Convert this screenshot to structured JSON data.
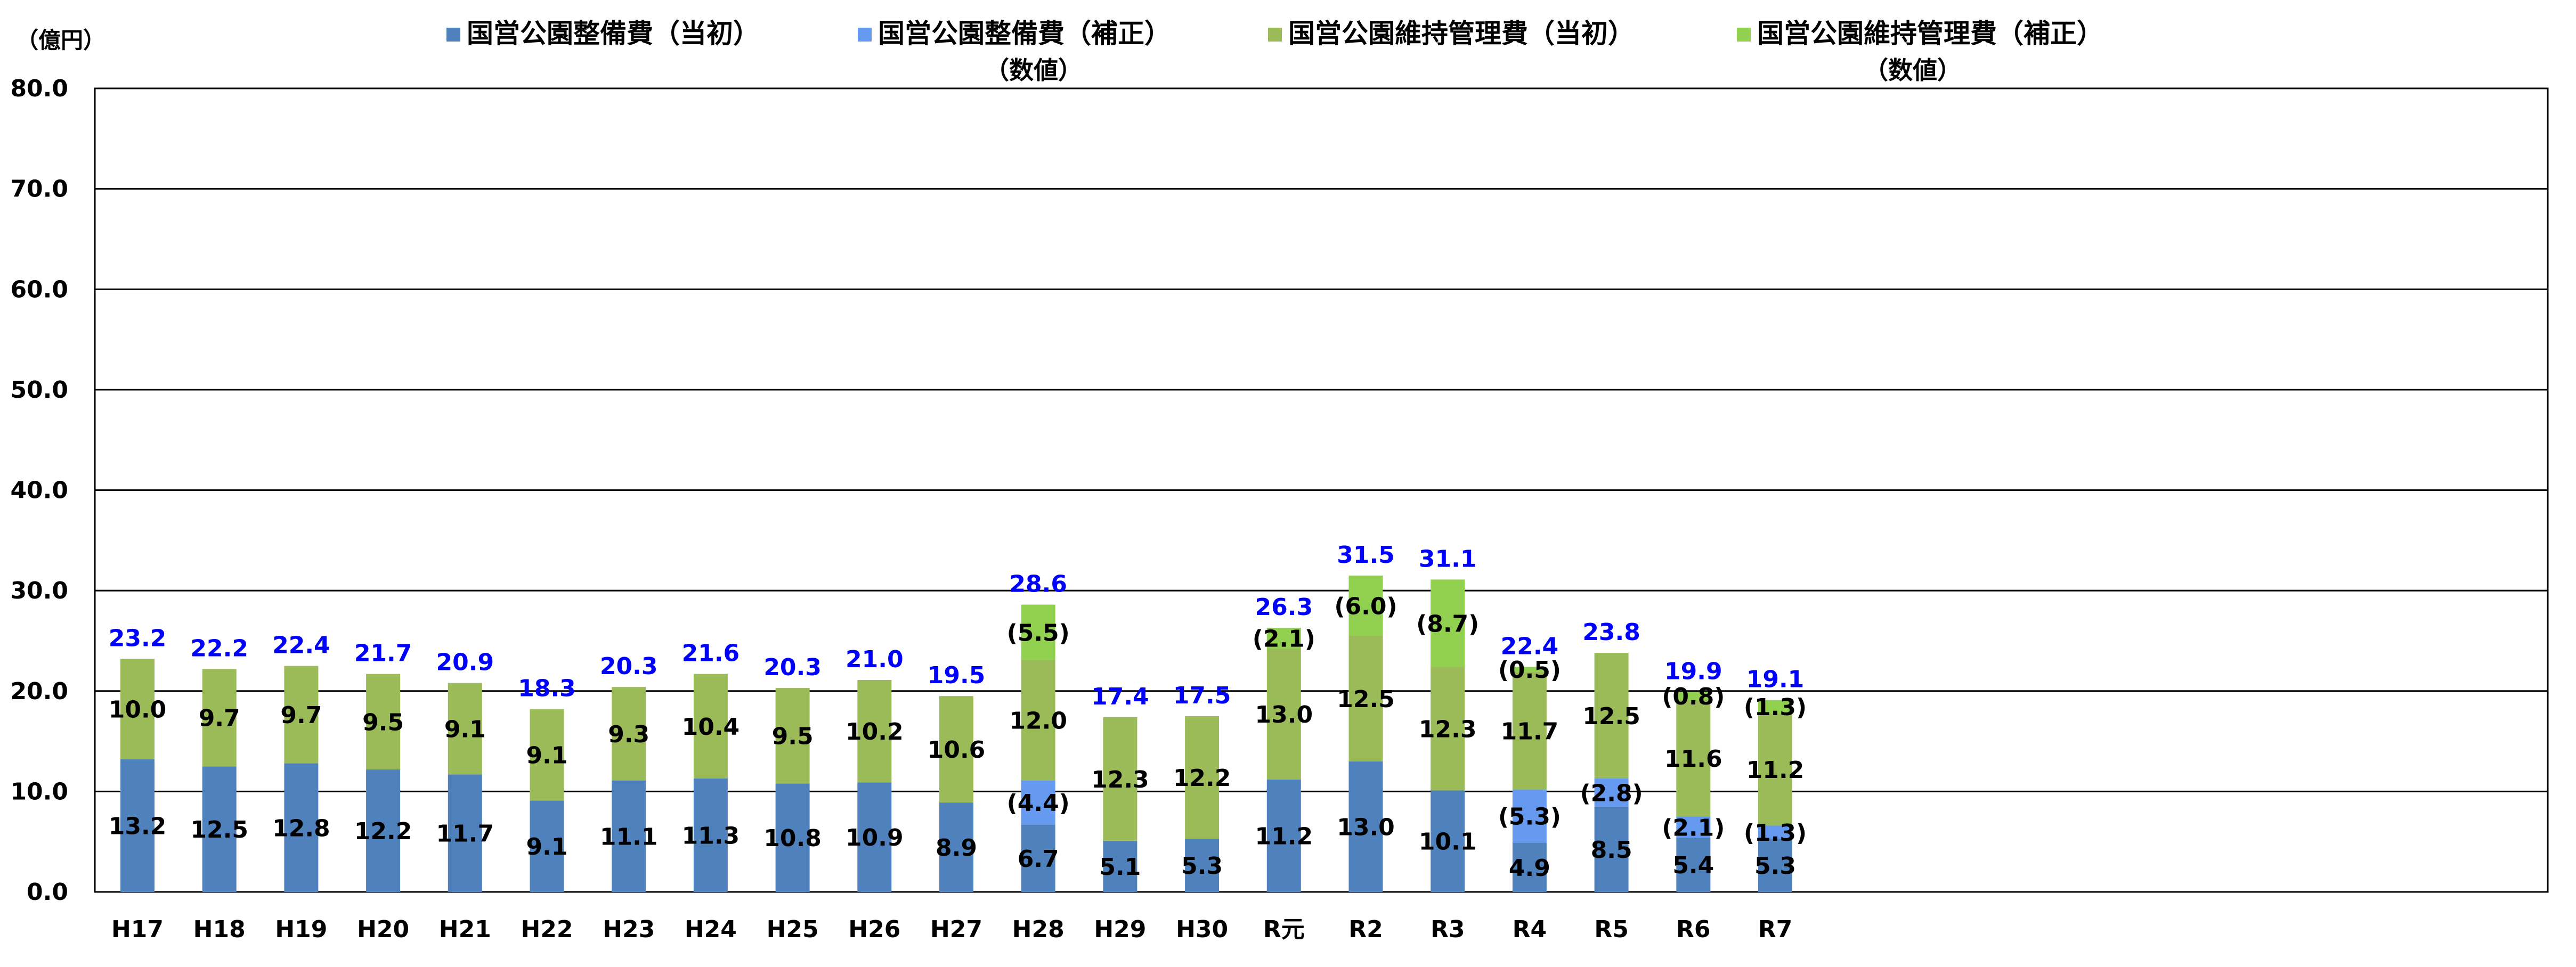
{
  "chart_data": {
    "type": "bar",
    "stacked": true,
    "title": "",
    "ylabel": "（億円）",
    "xlabel": "",
    "ylim": [
      0,
      80
    ],
    "yticks": [
      "0.0",
      "10.0",
      "20.0",
      "30.0",
      "40.0",
      "50.0",
      "60.0",
      "70.0",
      "80.0"
    ],
    "grid": true,
    "legend_position": "top",
    "categories": [
      "H17",
      "H18",
      "H19",
      "H20",
      "H21",
      "H22",
      "H23",
      "H24",
      "H25",
      "H26",
      "H27",
      "H28",
      "H29",
      "H30",
      "R元",
      "R2",
      "R3",
      "R4",
      "R5",
      "R6",
      "R7"
    ],
    "series": [
      {
        "name": "国営公園整備費（当初）",
        "color": "#4F81BD",
        "values": [
          13.2,
          12.5,
          12.8,
          12.2,
          11.7,
          9.1,
          11.1,
          11.3,
          10.8,
          10.9,
          8.9,
          6.7,
          5.1,
          5.3,
          11.2,
          13.0,
          10.1,
          4.9,
          8.5,
          5.4,
          5.3
        ]
      },
      {
        "name": "国営公園整備費（補正）",
        "color": "#6699F0",
        "values": [
          0,
          0,
          0,
          0,
          0,
          0,
          0,
          0,
          0,
          0,
          0,
          4.4,
          0,
          0,
          0,
          0,
          0,
          5.3,
          2.8,
          2.1,
          1.3
        ]
      },
      {
        "name": "国営公園維持管理費（当初）",
        "color": "#9BBB59",
        "values": [
          10.0,
          9.7,
          9.7,
          9.5,
          9.1,
          9.1,
          9.3,
          10.4,
          9.5,
          10.2,
          10.6,
          12.0,
          12.3,
          12.2,
          13.0,
          12.5,
          12.3,
          11.7,
          12.5,
          11.6,
          11.2
        ]
      },
      {
        "name": "国営公園維持管理費（補正）",
        "color": "#92D050",
        "values": [
          0,
          0,
          0,
          0,
          0,
          0,
          0,
          0,
          0,
          0,
          0,
          5.5,
          0,
          0,
          2.1,
          6.0,
          8.7,
          0.5,
          0,
          0.8,
          1.3
        ]
      }
    ],
    "segment_labels": [
      [
        "13.2",
        "12.5",
        "12.8",
        "12.2",
        "11.7",
        "9.1",
        "11.1",
        "11.3",
        "10.8",
        "10.9",
        "8.9",
        "6.7",
        "5.1",
        "5.3",
        "11.2",
        "13.0",
        "10.1",
        "4.9",
        "8.5",
        "5.4",
        "5.3"
      ],
      [
        "",
        "",
        "",
        "",
        "",
        "",
        "",
        "",
        "",
        "",
        "",
        "(4.4)",
        "",
        "",
        "",
        "",
        "",
        "(5.3)",
        "(2.8)",
        "(2.1)",
        "(1.3)"
      ],
      [
        "10.0",
        "9.7",
        "9.7",
        "9.5",
        "9.1",
        "9.1",
        "9.3",
        "10.4",
        "9.5",
        "10.2",
        "10.6",
        "12.0",
        "12.3",
        "12.2",
        "13.0",
        "12.5",
        "12.3",
        "11.7",
        "12.5",
        "11.6",
        "11.2"
      ],
      [
        "",
        "",
        "",
        "",
        "",
        "",
        "",
        "",
        "",
        "",
        "",
        "(5.5)",
        "",
        "",
        "(2.1)",
        "(6.0)",
        "(8.7)",
        "(0.5)",
        "",
        "(0.8)",
        "(1.3)"
      ]
    ],
    "totals": [
      "23.2",
      "22.2",
      "22.4",
      "21.7",
      "20.9",
      "18.3",
      "20.3",
      "21.6",
      "20.3",
      "21.0",
      "19.5",
      "28.6",
      "17.4",
      "17.5",
      "26.3",
      "31.5",
      "31.1",
      "22.4",
      "23.8",
      "19.9",
      "19.1"
    ],
    "total_label_color": "#0000FF",
    "legend_note": "（数値）",
    "legend_note_series": [
      1,
      3
    ]
  }
}
